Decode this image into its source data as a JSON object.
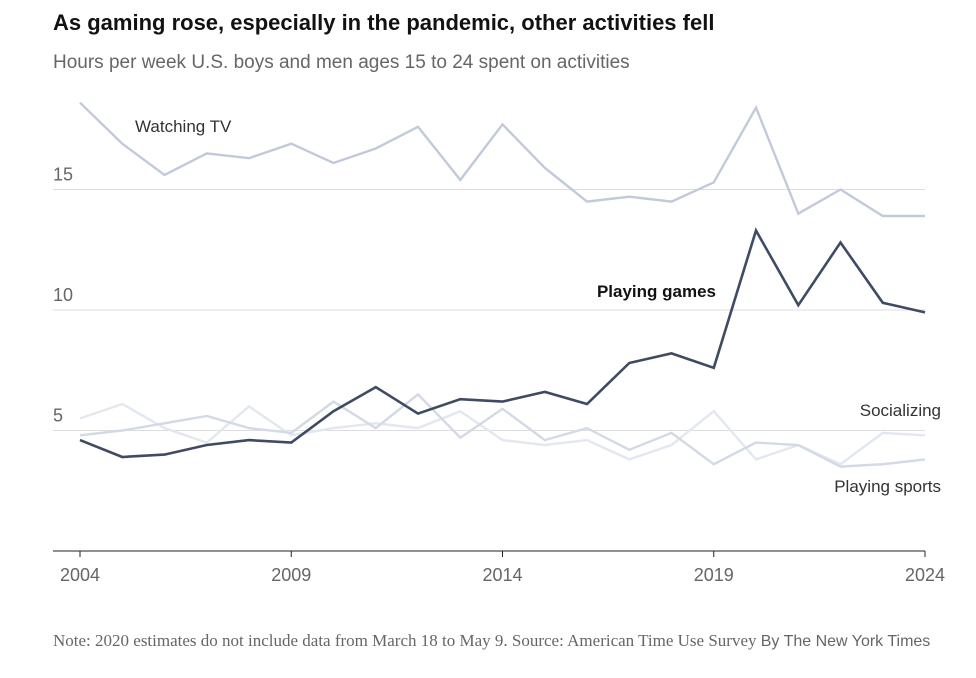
{
  "title": "As gaming rose, especially in the pandemic, other activities fell",
  "subtitle": "Hours per week U.S. boys and men ages 15 to 24 spent on activities",
  "note": "Note: 2020 estimates do not include data from March 18 to May 9.  Source: American Time Use Survey",
  "credit": "By The New York Times",
  "chart_data": {
    "type": "line",
    "x": [
      2004,
      2005,
      2006,
      2007,
      2008,
      2009,
      2010,
      2011,
      2012,
      2013,
      2014,
      2015,
      2016,
      2017,
      2018,
      2019,
      2020,
      2021,
      2022,
      2023,
      2024
    ],
    "xlim": [
      2004,
      2024
    ],
    "ylim": [
      0,
      20
    ],
    "x_ticks": [
      {
        "value": 2004,
        "label": "2004"
      },
      {
        "value": 2009,
        "label": "2009"
      },
      {
        "value": 2014,
        "label": "2014"
      },
      {
        "value": 2019,
        "label": "2019"
      },
      {
        "value": 2024,
        "label": "2024"
      }
    ],
    "y_ticks": [
      {
        "value": 5,
        "label": "5"
      },
      {
        "value": 10,
        "label": "10"
      },
      {
        "value": 15,
        "label": "15"
      }
    ],
    "grid": "horizontal",
    "legend": "direct labels",
    "series": [
      {
        "name": "Watching TV",
        "color": "#c2cad9",
        "values": [
          18.6,
          16.9,
          15.6,
          16.5,
          16.3,
          16.9,
          16.1,
          16.7,
          17.6,
          15.4,
          17.7,
          15.9,
          14.5,
          14.7,
          14.5,
          15.3,
          18.4,
          14.0,
          15.0,
          13.9,
          13.9
        ]
      },
      {
        "name": "Playing games",
        "color": "#3f4b63",
        "values": [
          4.6,
          3.9,
          4.0,
          4.4,
          4.6,
          4.5,
          5.8,
          6.8,
          5.7,
          6.3,
          6.2,
          6.6,
          6.1,
          7.8,
          8.2,
          7.6,
          13.3,
          10.2,
          12.8,
          10.3,
          9.9
        ]
      },
      {
        "name": "Socializing",
        "color": "#e3e7ef",
        "values": [
          5.5,
          6.1,
          5.1,
          4.5,
          6.0,
          4.8,
          5.1,
          5.3,
          5.1,
          5.8,
          4.6,
          4.4,
          4.6,
          3.8,
          4.4,
          5.8,
          3.8,
          4.4,
          3.6,
          4.9,
          4.8
        ]
      },
      {
        "name": "Playing sports",
        "color": "#d3d9e5",
        "values": [
          4.8,
          5.0,
          5.3,
          5.6,
          5.1,
          4.9,
          6.2,
          5.1,
          6.5,
          4.7,
          5.9,
          4.6,
          5.1,
          4.2,
          4.9,
          3.6,
          4.5,
          4.4,
          3.5,
          3.6,
          3.8
        ]
      }
    ]
  }
}
